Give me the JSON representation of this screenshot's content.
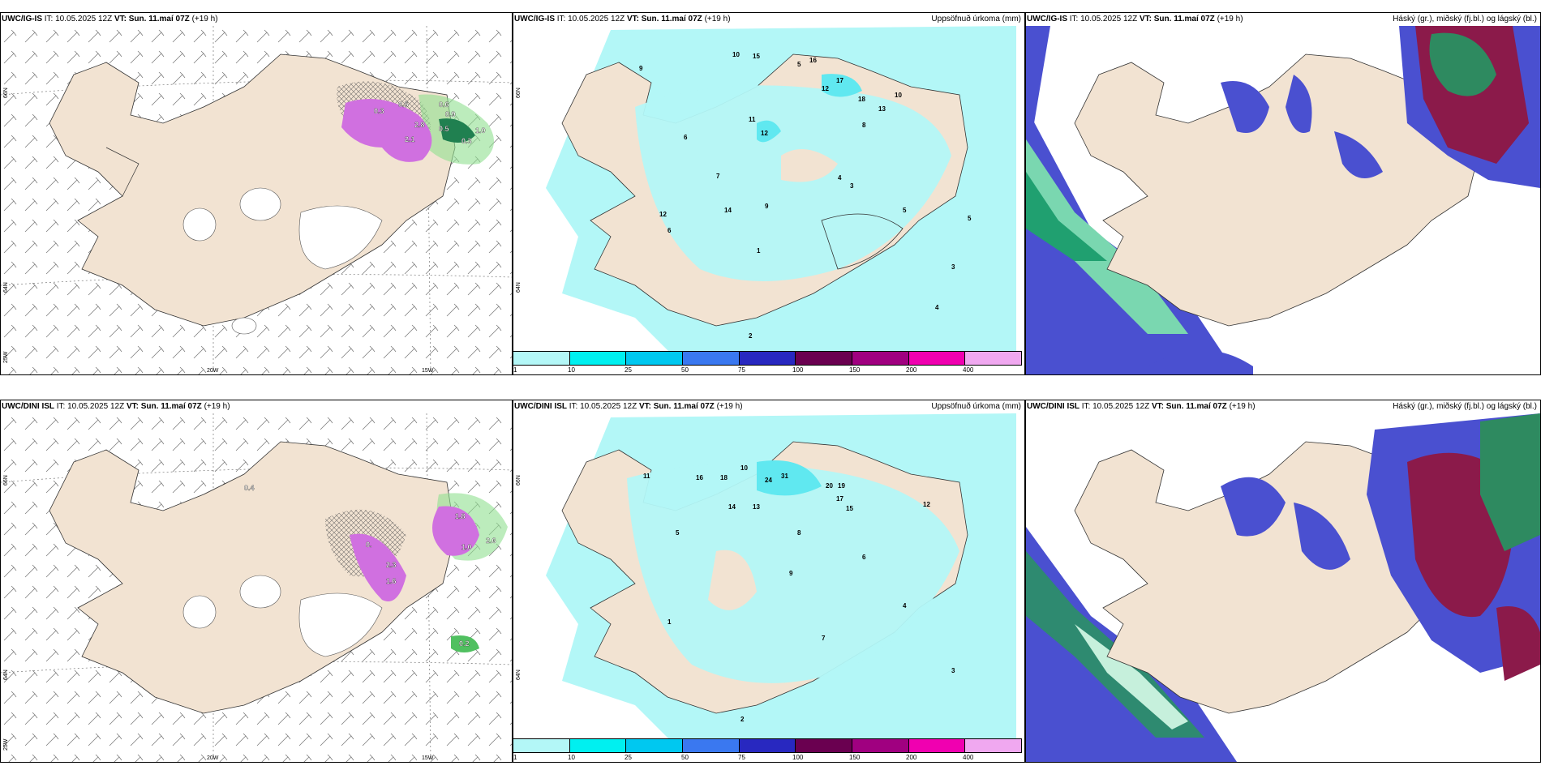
{
  "panels": {
    "top_left": {
      "model": "UWC/IG-IS",
      "it_label": "IT:",
      "it_value": "10.05.2025 12Z",
      "vt_label": "VT:",
      "vt_value": "Sun. 11.maí 07Z",
      "lead": "(+19 h)",
      "right_title": ""
    },
    "top_mid": {
      "model": "UWC/IG-IS",
      "it_label": "IT:",
      "it_value": "10.05.2025 12Z",
      "vt_label": "VT:",
      "vt_value": "Sun. 11.maí 07Z",
      "lead": "(+19 h)",
      "right_title": "Uppsöfnuð úrkoma (mm)"
    },
    "top_right": {
      "model": "UWC/IG-IS",
      "it_label": "IT:",
      "it_value": "10.05.2025 12Z",
      "vt_label": "VT:",
      "vt_value": "Sun. 11.maí 07Z",
      "lead": "(+19 h)",
      "right_title": "Háský (gr.), miðský (fj.bl.) og lágský (bl.)"
    },
    "bot_left": {
      "model": "UWC/DINI ISL",
      "it_label": "IT:",
      "it_value": "10.05.2025 12Z",
      "vt_label": "VT:",
      "vt_value": "Sun. 11.maí 07Z",
      "lead": "(+19 h)",
      "right_title": ""
    },
    "bot_mid": {
      "model": "UWC/DINI ISL",
      "it_label": "IT:",
      "it_value": "10.05.2025 12Z",
      "vt_label": "VT:",
      "vt_value": "Sun. 11.maí 07Z",
      "lead": "(+19 h)",
      "right_title": "Uppsöfnuð úrkoma (mm)"
    },
    "bot_right": {
      "model": "UWC/DINI ISL",
      "it_label": "IT:",
      "it_value": "10.05.2025 12Z",
      "vt_label": "VT:",
      "vt_value": "Sun. 11.maí 07Z",
      "lead": "(+19 h)",
      "right_title": "Háský (gr.), miðský (fj.bl.) og lágský (bl.)"
    }
  },
  "axes": {
    "lat66": "66N",
    "lat64": "64N",
    "lon25": "25W",
    "lon20": "20W",
    "lon15": "15W"
  },
  "legend": {
    "colors": [
      "#b3f7f7",
      "#00f0f0",
      "#00c8f0",
      "#3a78f0",
      "#2828c0",
      "#6a0050",
      "#a00080",
      "#f000b0",
      "#f0a8f0"
    ],
    "ticks": [
      "1",
      "10",
      "25",
      "50",
      "75",
      "100",
      "150",
      "200",
      "400"
    ]
  },
  "top_left_labels": [
    "0.6",
    "0.9",
    "0.5",
    "0.3",
    "2.8",
    "2.1",
    "0.5",
    "1.0",
    "0.3"
  ],
  "bot_left_labels": [
    "1.8",
    "2.6",
    "0.",
    "2.3",
    "1.6",
    "1.0",
    "0.4",
    "0.2"
  ],
  "top_mid_labels": [
    "10",
    "15",
    "16",
    "9",
    "5",
    "17",
    "12",
    "18",
    "13",
    "11",
    "12",
    "8",
    "10",
    "4",
    "3",
    "6",
    "5",
    "7",
    "9",
    "12",
    "14",
    "2",
    "3",
    "6",
    "5",
    "4",
    "1"
  ],
  "bot_mid_labels": [
    "16",
    "18",
    "24",
    "31",
    "20",
    "19",
    "17",
    "15",
    "12",
    "14",
    "13",
    "10",
    "9",
    "11",
    "7",
    "5",
    "6",
    "4",
    "3",
    "2",
    "8",
    "1"
  ],
  "colors": {
    "land": "#f2e3d2",
    "precip_light": "#b3f7f7",
    "precip_mid": "#60e8f0",
    "cloud_high": "#8b1a4a",
    "cloud_mid": "#4a50d0",
    "cloud_low": "#20b080"
  }
}
